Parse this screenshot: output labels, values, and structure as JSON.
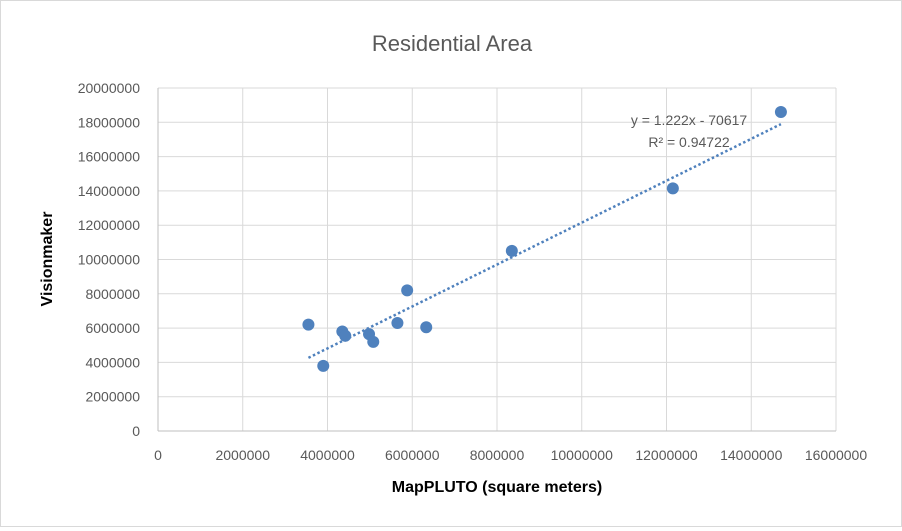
{
  "chart_data": {
    "type": "scatter",
    "title": "Residential Area",
    "xlabel": "MapPLUTO (square meters)",
    "ylabel": "Visionmaker",
    "xlim": [
      0,
      16000000
    ],
    "ylim": [
      0,
      20000000
    ],
    "x_ticks": [
      "0",
      "2000000",
      "4000000",
      "6000000",
      "8000000",
      "10000000",
      "12000000",
      "14000000",
      "16000000"
    ],
    "y_ticks": [
      "0",
      "2000000",
      "4000000",
      "6000000",
      "8000000",
      "10000000",
      "12000000",
      "14000000",
      "16000000",
      "18000000",
      "20000000"
    ],
    "grid": true,
    "series": [
      {
        "points": [
          {
            "x": 3550000,
            "y": 6200000
          },
          {
            "x": 3900000,
            "y": 3800000
          },
          {
            "x": 4350000,
            "y": 5800000
          },
          {
            "x": 4420000,
            "y": 5550000
          },
          {
            "x": 4980000,
            "y": 5650000
          },
          {
            "x": 5080000,
            "y": 5200000
          },
          {
            "x": 5650000,
            "y": 6300000
          },
          {
            "x": 5880000,
            "y": 8200000
          },
          {
            "x": 6330000,
            "y": 6050000
          },
          {
            "x": 8350000,
            "y": 10500000
          },
          {
            "x": 12150000,
            "y": 14150000
          },
          {
            "x": 14700000,
            "y": 18600000
          }
        ],
        "color": "#4f81bd"
      }
    ],
    "trendline": {
      "type": "linear",
      "slope": 1.222,
      "intercept": -70617,
      "x_range": [
        3550000,
        14700000
      ],
      "color": "#4f81bd",
      "style": "dotted",
      "equation_label": "y = 1.222x - 70617",
      "r2_label": "R² = 0.94722"
    }
  }
}
